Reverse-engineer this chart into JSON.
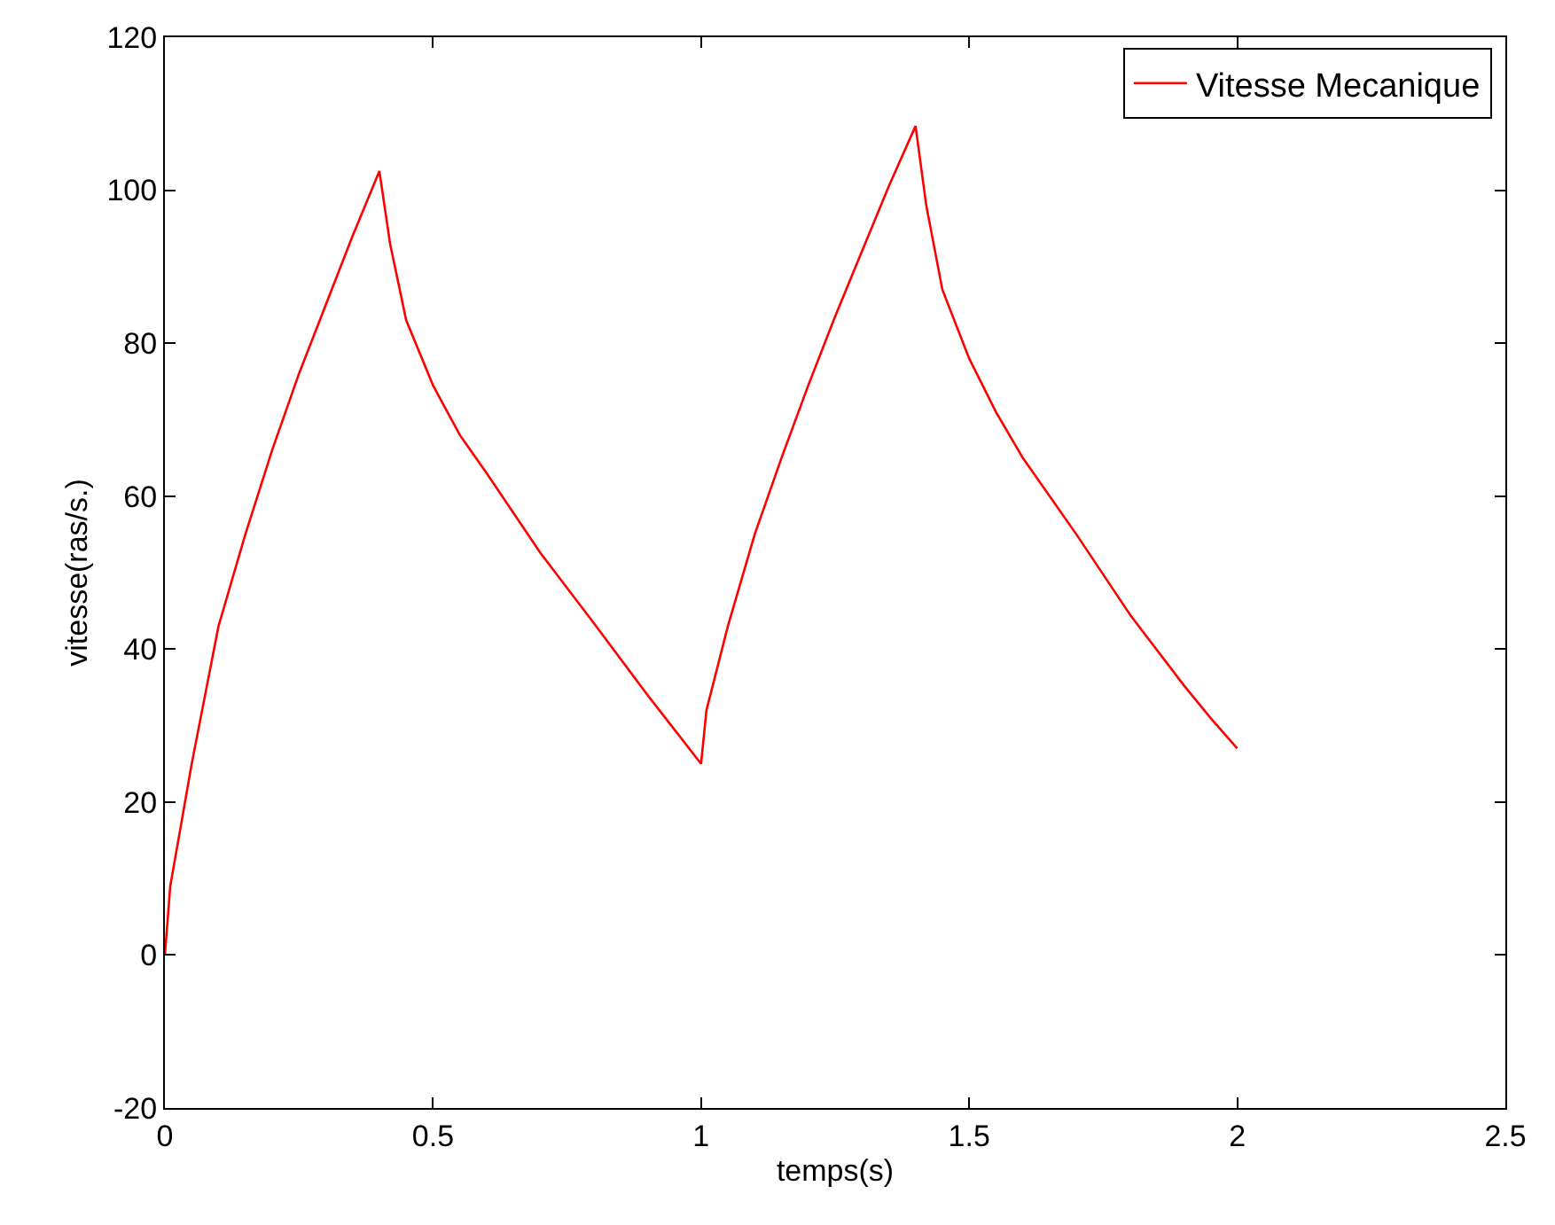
{
  "chart_data": {
    "type": "line",
    "xlabel": "temps(s)",
    "ylabel": "vitesse(ras/s.)",
    "x": [
      0,
      0.01,
      0.03,
      0.05,
      0.1,
      0.15,
      0.2,
      0.25,
      0.3,
      0.35,
      0.4,
      0.42,
      0.45,
      0.5,
      0.55,
      0.6,
      0.7,
      0.8,
      0.9,
      0.95,
      1.0,
      1.01,
      1.05,
      1.1,
      1.15,
      1.2,
      1.25,
      1.3,
      1.35,
      1.4,
      1.42,
      1.45,
      1.5,
      1.55,
      1.6,
      1.7,
      1.8,
      1.9,
      1.95,
      2.0
    ],
    "series": [
      {
        "name": "Vitesse Mecanique",
        "color": "#ff0000",
        "values": [
          0,
          9,
          17,
          25,
          43,
          55,
          66,
          76,
          85,
          94,
          102.5,
          93,
          83,
          74.5,
          68,
          63,
          52.6,
          43.4,
          34,
          29.5,
          25,
          32,
          43,
          55,
          65,
          74.5,
          83.5,
          92,
          100.5,
          108.4,
          98,
          87,
          78,
          71,
          65,
          55,
          44.5,
          35.3,
          31,
          27
        ]
      }
    ],
    "xlim": [
      0,
      2.5
    ],
    "xticks": [
      0,
      0.5,
      1,
      1.5,
      2,
      2.5
    ],
    "ylim": [
      -20,
      120
    ],
    "yticks": [
      -20,
      0,
      20,
      40,
      60,
      80,
      100,
      120
    ],
    "grid": false,
    "legend": "top right",
    "marker": "none",
    "line_style": "solid"
  }
}
